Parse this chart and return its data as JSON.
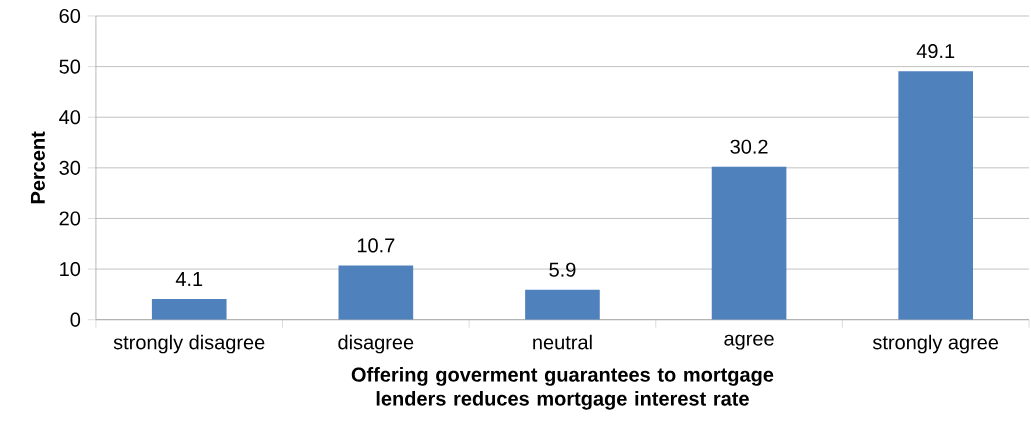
{
  "chart_data": {
    "type": "bar",
    "xlabel": "Offering goverment guarantees to mortgage lenders reduces mortgage interest rate",
    "ylabel": "Percent",
    "categories": [
      "strongly disagree",
      "disagree",
      "neutral",
      "agree",
      "strongly agree"
    ],
    "values": [
      4.1,
      10.7,
      5.9,
      30.2,
      49.1
    ],
    "color": "#4f81bd",
    "data_labels": true,
    "ylim": [
      0,
      60
    ],
    "yticks": [
      0,
      10,
      20,
      30,
      40,
      50,
      60
    ],
    "grid": "y"
  }
}
